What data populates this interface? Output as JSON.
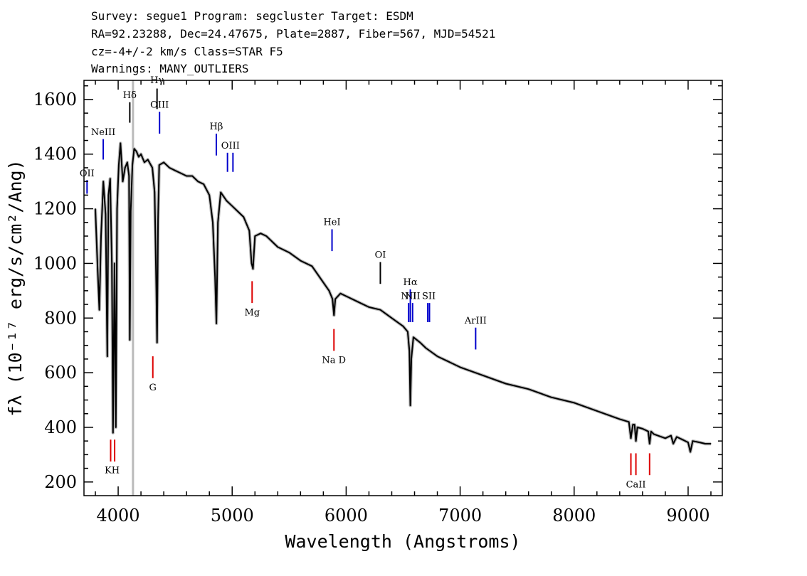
{
  "header": {
    "line1": "Survey: segue1 Program: segcluster Target: ESDM",
    "line2": "RA=92.23288, Dec=24.47675, Plate=2887, Fiber=567, MJD=54521",
    "line3": "cz=-4+/-2 km/s Class=STAR F5",
    "line4": "Warnings: MANY_OUTLIERS"
  },
  "chart_data": {
    "type": "line",
    "xlabel": "Wavelength (Angstroms)",
    "ylabel": "fλ (10⁻¹⁷ erg/s/cm²/Ang)",
    "xlim": [
      3700,
      9300
    ],
    "ylim": [
      150,
      1670
    ],
    "x_ticks": [
      4000,
      5000,
      6000,
      7000,
      8000,
      9000
    ],
    "y_ticks": [
      200,
      400,
      600,
      800,
      1000,
      1200,
      1400,
      1600
    ],
    "grid": false,
    "vertical_band": 4130,
    "series": [
      {
        "color": "#000000",
        "x": [
          3800,
          3820,
          3835,
          3850,
          3870,
          3890,
          3905,
          3915,
          3930,
          3945,
          3955,
          3968,
          3980,
          3990,
          4005,
          4020,
          4040,
          4060,
          4080,
          4095,
          4102,
          4110,
          4125,
          4140,
          4160,
          4180,
          4200,
          4230,
          4260,
          4300,
          4320,
          4335,
          4341,
          4350,
          4360,
          4400,
          4450,
          4500,
          4550,
          4600,
          4650,
          4700,
          4750,
          4800,
          4830,
          4850,
          4862,
          4875,
          4900,
          4950,
          5000,
          5050,
          5100,
          5150,
          5170,
          5183,
          5200,
          5250,
          5300,
          5400,
          5500,
          5600,
          5700,
          5800,
          5850,
          5880,
          5893,
          5905,
          5950,
          6000,
          6100,
          6200,
          6300,
          6400,
          6500,
          6540,
          6555,
          6563,
          6572,
          6590,
          6650,
          6700,
          6800,
          6900,
          7000,
          7200,
          7400,
          7600,
          7800,
          8000,
          8200,
          8400,
          8480,
          8498,
          8515,
          8530,
          8542,
          8555,
          8600,
          8650,
          8662,
          8675,
          8700,
          8800,
          8850,
          8870,
          8900,
          8950,
          9000,
          9020,
          9040,
          9100,
          9150,
          9200
        ],
        "y": [
          1200,
          980,
          830,
          1100,
          1300,
          1180,
          660,
          1250,
          1310,
          1000,
          380,
          1000,
          400,
          1200,
          1360,
          1440,
          1300,
          1350,
          1370,
          1320,
          720,
          1190,
          1360,
          1420,
          1410,
          1390,
          1400,
          1370,
          1380,
          1350,
          1260,
          900,
          710,
          1160,
          1360,
          1370,
          1350,
          1340,
          1330,
          1320,
          1320,
          1300,
          1290,
          1250,
          1150,
          950,
          780,
          1150,
          1260,
          1230,
          1210,
          1190,
          1170,
          1120,
          1000,
          980,
          1100,
          1110,
          1100,
          1060,
          1040,
          1010,
          990,
          930,
          900,
          870,
          810,
          870,
          890,
          880,
          860,
          840,
          830,
          800,
          770,
          750,
          680,
          480,
          650,
          730,
          710,
          690,
          660,
          640,
          620,
          590,
          560,
          540,
          510,
          490,
          460,
          430,
          420,
          360,
          410,
          410,
          350,
          400,
          395,
          385,
          340,
          385,
          375,
          360,
          370,
          340,
          365,
          355,
          345,
          310,
          350,
          345,
          340,
          340
        ]
      }
    ],
    "line_markers": [
      {
        "label": "OII",
        "x": 3727,
        "color": "#0000cc",
        "y_top": 1305,
        "y_bottom": 1255,
        "label_y": 1318
      },
      {
        "label": "NeIII",
        "x": 3869,
        "color": "#0000cc",
        "y_top": 1455,
        "y_bottom": 1380,
        "label_y": 1470
      },
      {
        "label": "KH",
        "x": 3947,
        "color": "#dd0000",
        "y_top": 355,
        "y_bottom": 275,
        "label_y": 232,
        "marks": [
          3934,
          3969
        ]
      },
      {
        "label": "Hδ",
        "x": 4102,
        "color": "#000000",
        "y_top": 1590,
        "y_bottom": 1515,
        "label_y": 1605
      },
      {
        "label": "G",
        "x": 4304,
        "color": "#dd0000",
        "y_top": 660,
        "y_bottom": 580,
        "label_y": 535
      },
      {
        "label": "Hγ",
        "x": 4341,
        "color": "#000000",
        "y_top": 1640,
        "y_bottom": 1565,
        "label_y": 1660
      },
      {
        "label": "OIII",
        "x": 4363,
        "color": "#0000cc",
        "y_top": 1555,
        "y_bottom": 1475,
        "label_y": 1570
      },
      {
        "label": "Hβ",
        "x": 4861,
        "color": "#0000cc",
        "y_top": 1475,
        "y_bottom": 1395,
        "label_y": 1490
      },
      {
        "label": "OIII",
        "x": 4985,
        "color": "#0000cc",
        "y_top": 1405,
        "y_bottom": 1335,
        "label_y": 1420,
        "marks": [
          4959,
          5007
        ]
      },
      {
        "label": "Mg",
        "x": 5175,
        "color": "#dd0000",
        "y_top": 935,
        "y_bottom": 855,
        "label_y": 810
      },
      {
        "label": "HeI",
        "x": 5876,
        "color": "#0000cc",
        "y_top": 1125,
        "y_bottom": 1045,
        "label_y": 1140
      },
      {
        "label": "Na D",
        "x": 5893,
        "color": "#dd0000",
        "y_top": 760,
        "y_bottom": 680,
        "label_y": 635
      },
      {
        "label": "OI",
        "x": 6300,
        "color": "#000000",
        "y_top": 1005,
        "y_bottom": 925,
        "label_y": 1020
      },
      {
        "label": "NII",
        "x": 6548,
        "color": "#0000cc",
        "y_top": 855,
        "y_bottom": 785,
        "label_y": 870
      },
      {
        "label": "Hα",
        "x": 6563,
        "color": "#0000cc",
        "y_top": 905,
        "y_bottom": 785,
        "label_y": 920
      },
      {
        "label": "NII",
        "x": 6583,
        "color": "#0000cc",
        "y_top": 855,
        "y_bottom": 785,
        "label_y": 870
      },
      {
        "label": "SII",
        "x": 6725,
        "color": "#0000cc",
        "y_top": 855,
        "y_bottom": 785,
        "label_y": 870,
        "marks": [
          6716,
          6731
        ]
      },
      {
        "label": "ArIII",
        "x": 7136,
        "color": "#0000cc",
        "y_top": 765,
        "y_bottom": 685,
        "label_y": 780
      },
      {
        "label": "CaII",
        "x": 8542,
        "color": "#dd0000",
        "y_top": 305,
        "y_bottom": 225,
        "label_y": 180,
        "marks": [
          8498,
          8542,
          8662
        ]
      }
    ]
  }
}
